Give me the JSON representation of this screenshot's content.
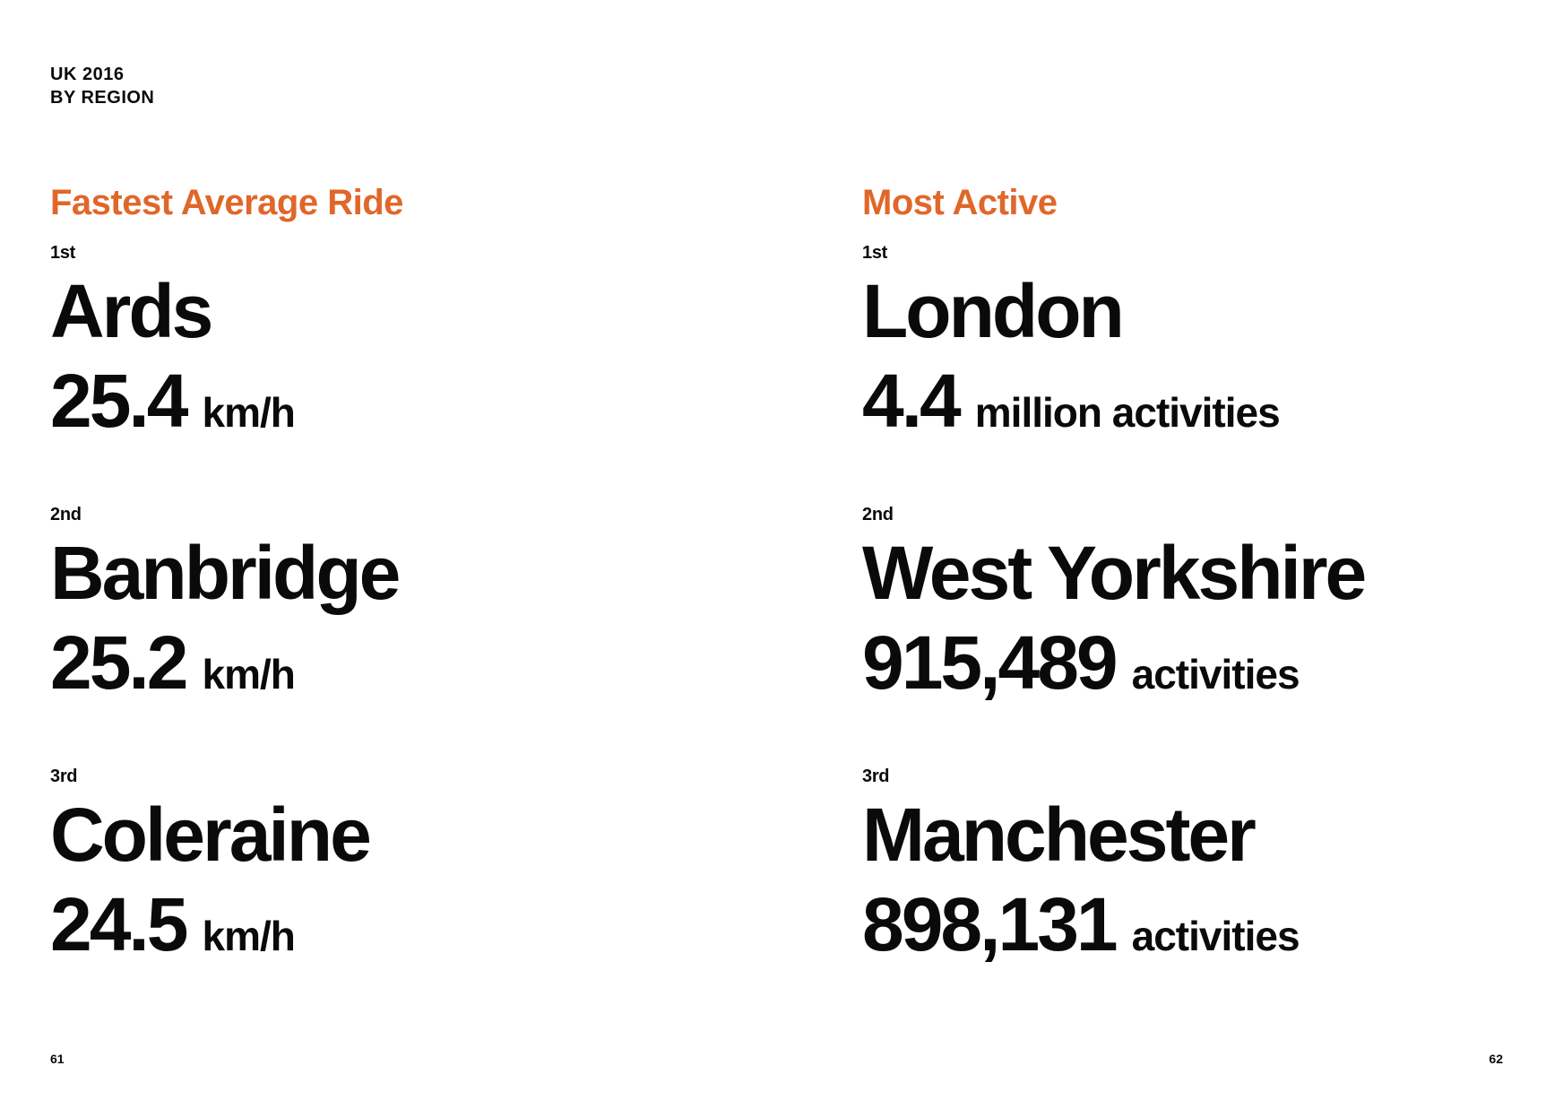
{
  "header": {
    "line1": "UK 2016",
    "line2": "BY REGION"
  },
  "accent_color": "#e0672a",
  "sections": [
    {
      "title": "Fastest Average Ride",
      "entries": [
        {
          "rank": "1st",
          "name": "Ards",
          "value": "25.4",
          "unit": "km/h"
        },
        {
          "rank": "2nd",
          "name": "Banbridge",
          "value": "25.2",
          "unit": "km/h"
        },
        {
          "rank": "3rd",
          "name": "Coleraine",
          "value": "24.5",
          "unit": "km/h"
        }
      ]
    },
    {
      "title": "Most Active",
      "entries": [
        {
          "rank": "1st",
          "name": "London",
          "value": "4.4",
          "unit": "million activities"
        },
        {
          "rank": "2nd",
          "name": "West Yorkshire",
          "value": "915,489",
          "unit": "activities"
        },
        {
          "rank": "3rd",
          "name": "Manchester",
          "value": "898,131",
          "unit": "activities"
        }
      ]
    }
  ],
  "pages": {
    "left": "61",
    "right": "62"
  }
}
